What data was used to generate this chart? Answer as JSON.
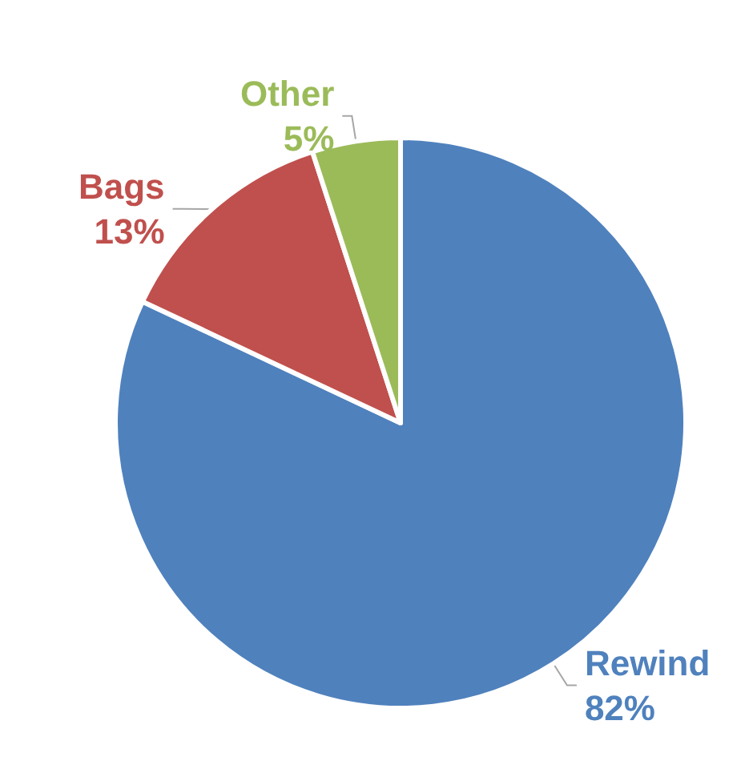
{
  "chart_data": {
    "type": "pie",
    "categories": [
      "Rewind",
      "Bags",
      "Other"
    ],
    "values": [
      82,
      13,
      5
    ],
    "colors": [
      "#4f81bd",
      "#c0504d",
      "#9bbb59"
    ],
    "value_labels": [
      "82%",
      "13%",
      "5%"
    ]
  }
}
